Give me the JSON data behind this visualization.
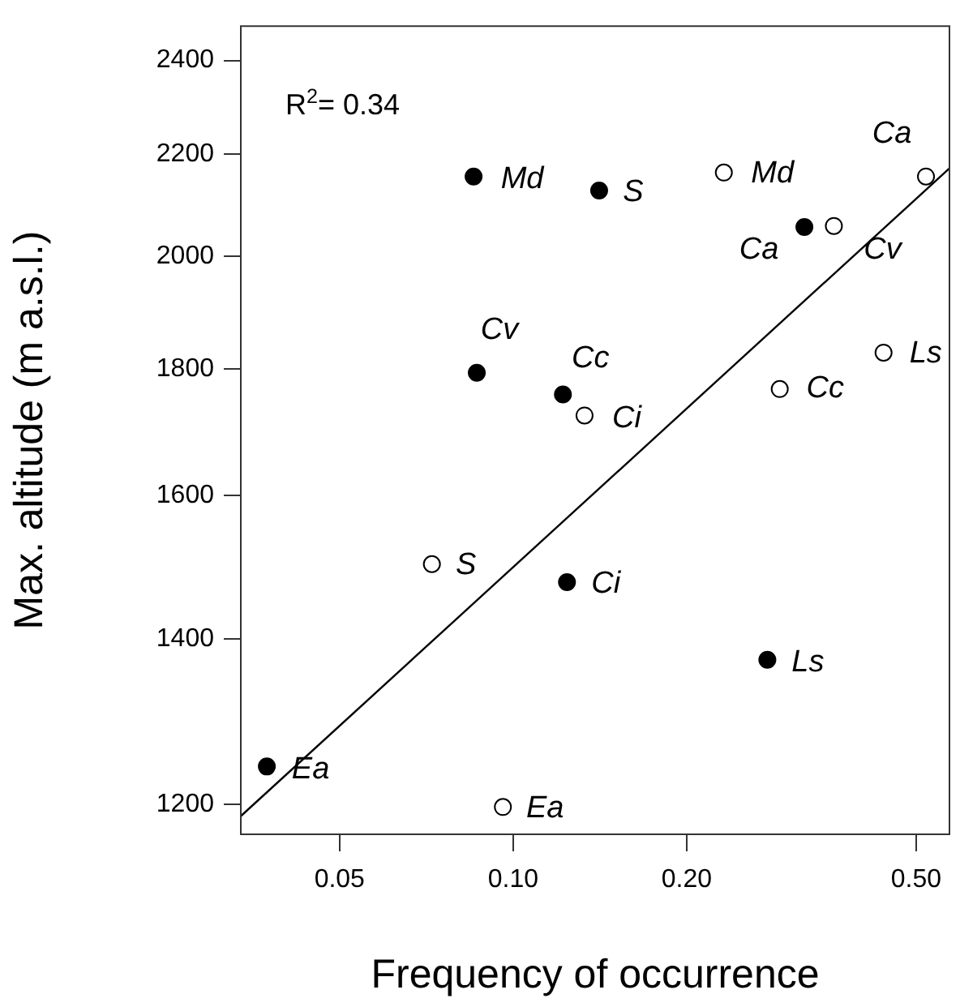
{
  "chart_data": {
    "type": "scatter",
    "xlabel": "Frequency of occurrence",
    "ylabel": "Max. altitude (m a.s.l.)",
    "log": "xy",
    "marker": "circle",
    "xlim": [
      0.0336,
      0.573
    ],
    "ylim": [
      1166,
      2480
    ],
    "xticks": [
      0.05,
      {
        "value": 0.1,
        "label": "0.10"
      },
      {
        "value": 0.2,
        "label": "0.20"
      },
      {
        "value": 0.5,
        "label": "0.50"
      }
    ],
    "yticks": [
      1200,
      1400,
      1600,
      1800,
      2000,
      2200,
      2400
    ],
    "annotations": [
      "R$^{2}$= 0.34",
      {
        "text": "Md",
        "x": 0.0854,
        "y": 2154
      },
      {
        "text": "S",
        "x": 0.141,
        "y": 2126
      },
      {
        "text": "Ca",
        "x": 0.32,
        "y": 2055
      },
      {
        "text": "Cv",
        "x": 0.0865,
        "y": 1794
      },
      {
        "text": "Cc",
        "x": 0.122,
        "y": 1758
      },
      {
        "text": "Ci",
        "x": 0.124,
        "y": 1476
      },
      {
        "text": "Ls",
        "x": 0.276,
        "y": 1373
      },
      {
        "text": "Ea",
        "x": 0.0374,
        "y": 1243
      },
      {
        "text": "Md",
        "x": 0.232,
        "y": 2162
      },
      {
        "text": "Ca",
        "x": 0.52,
        "y": 2154
      },
      {
        "text": "Cv",
        "x": 0.36,
        "y": 2057
      },
      {
        "text": "Ls",
        "x": 0.439,
        "y": 1828
      },
      {
        "text": "Cc",
        "x": 0.29,
        "y": 1767
      },
      {
        "text": "Ci",
        "x": 0.133,
        "y": 1724
      },
      {
        "text": "S",
        "x": 0.0723,
        "y": 1501
      },
      {
        "text": "Ea",
        "x": 0.096,
        "y": 1197
      }
    ],
    "series": [
      {
        "color": "#000000",
        "x": [
          0.0854,
          0.141,
          0.32,
          0.0865,
          0.122,
          0.124,
          0.276,
          0.0374
        ],
        "values": [
          2154,
          2126,
          2055,
          1794,
          1758,
          1476,
          1373,
          1243
        ]
      },
      {
        "color": "#ffffff",
        "x": [
          0.232,
          0.52,
          0.36,
          0.439,
          0.29,
          0.133,
          0.0723,
          0.096
        ],
        "values": [
          2162,
          2154,
          2057,
          1828,
          1767,
          1724,
          1501,
          1197
        ]
      },
      {
        "type": "line",
        "marker": "none",
        "color": "#000000",
        "x": [
          0.0336,
          0.573
        ],
        "values": [
          1186,
          2172
        ]
      }
    ]
  }
}
